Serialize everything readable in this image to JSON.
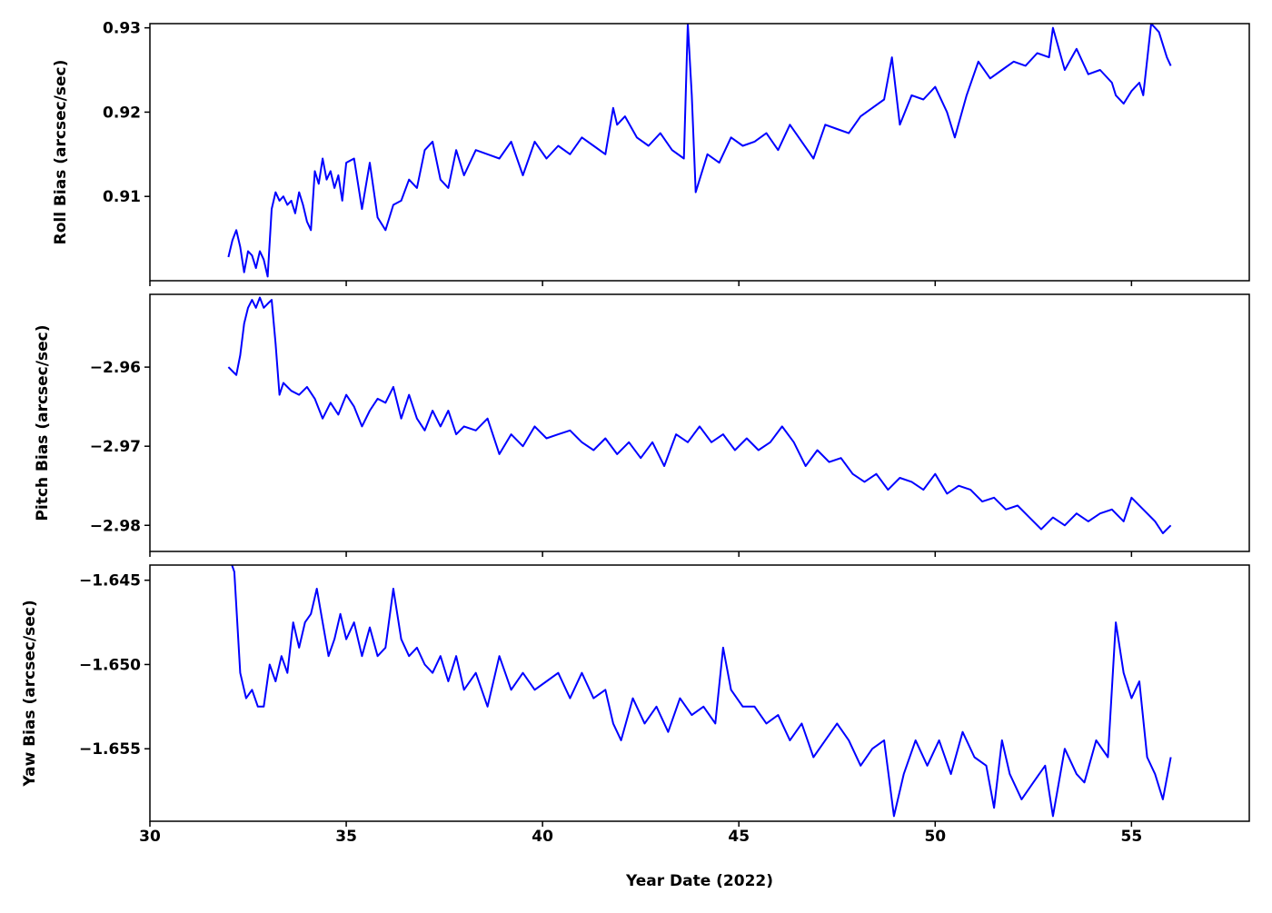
{
  "chart_data": {
    "type": "line",
    "xlabel": "Year Date (2022)",
    "xlim": [
      30,
      58
    ],
    "xticks": [
      "30",
      "35",
      "40",
      "45",
      "50",
      "55"
    ],
    "xtick_values": [
      30,
      35,
      40,
      45,
      50,
      55
    ],
    "line_color": "#0000ff",
    "grid": false,
    "panels": [
      {
        "ylabel": "Roll Bias (arcsec/sec)",
        "ylim": [
          0.9,
          0.9305
        ],
        "yticks": [
          "0.91",
          "0.92",
          "0.93"
        ],
        "ytick_values": [
          0.91,
          0.92,
          0.93
        ],
        "series": [
          {
            "x": [
              32.0,
              32.1,
              32.2,
              32.3,
              32.4,
              32.5,
              32.6,
              32.7,
              32.8,
              32.9,
              33.0,
              33.1,
              33.2,
              33.3,
              33.4,
              33.5,
              33.6,
              33.7,
              33.8,
              33.9,
              34.0,
              34.1,
              34.2,
              34.3,
              34.4,
              34.5,
              34.6,
              34.7,
              34.8,
              34.9,
              35.0,
              35.2,
              35.4,
              35.6,
              35.8,
              36.0,
              36.2,
              36.4,
              36.6,
              36.8,
              37.0,
              37.2,
              37.4,
              37.6,
              37.8,
              38.0,
              38.3,
              38.6,
              38.9,
              39.2,
              39.5,
              39.8,
              40.1,
              40.4,
              40.7,
              41.0,
              41.3,
              41.6,
              41.8,
              41.9,
              42.1,
              42.4,
              42.7,
              43.0,
              43.3,
              43.6,
              43.7,
              43.8,
              43.9,
              44.2,
              44.5,
              44.8,
              45.1,
              45.4,
              45.7,
              46.0,
              46.3,
              46.6,
              46.9,
              47.2,
              47.5,
              47.8,
              48.1,
              48.4,
              48.7,
              48.9,
              49.1,
              49.4,
              49.7,
              50.0,
              50.3,
              50.5,
              50.8,
              51.1,
              51.4,
              51.7,
              52.0,
              52.3,
              52.6,
              52.9,
              53.0,
              53.3,
              53.6,
              53.9,
              54.2,
              54.5,
              54.6,
              54.8,
              55.0,
              55.2,
              55.3,
              55.5,
              55.7,
              55.9,
              56.0
            ],
            "y": [
              0.9028,
              0.9048,
              0.906,
              0.904,
              0.901,
              0.9035,
              0.903,
              0.9015,
              0.9035,
              0.9025,
              0.9005,
              0.9085,
              0.9105,
              0.9095,
              0.91,
              0.909,
              0.9095,
              0.908,
              0.9105,
              0.909,
              0.907,
              0.906,
              0.913,
              0.9115,
              0.9145,
              0.912,
              0.913,
              0.911,
              0.9125,
              0.9095,
              0.914,
              0.9145,
              0.9085,
              0.914,
              0.9075,
              0.906,
              0.909,
              0.9095,
              0.912,
              0.911,
              0.9155,
              0.9165,
              0.912,
              0.911,
              0.9155,
              0.9125,
              0.9155,
              0.915,
              0.9145,
              0.9165,
              0.9125,
              0.9165,
              0.9145,
              0.916,
              0.915,
              0.917,
              0.916,
              0.915,
              0.9205,
              0.9185,
              0.9195,
              0.917,
              0.916,
              0.9175,
              0.9155,
              0.9145,
              0.9305,
              0.922,
              0.9105,
              0.915,
              0.914,
              0.917,
              0.916,
              0.9165,
              0.9175,
              0.9155,
              0.9185,
              0.9165,
              0.9145,
              0.9185,
              0.918,
              0.9175,
              0.9195,
              0.9205,
              0.9215,
              0.9265,
              0.9185,
              0.922,
              0.9215,
              0.923,
              0.92,
              0.917,
              0.922,
              0.926,
              0.924,
              0.925,
              0.926,
              0.9255,
              0.927,
              0.9265,
              0.93,
              0.925,
              0.9275,
              0.9245,
              0.925,
              0.9235,
              0.922,
              0.921,
              0.9225,
              0.9235,
              0.922,
              0.9305,
              0.9295,
              0.9265,
              0.9255
            ]
          }
        ]
      },
      {
        "ylabel": "Pitch Bias (arcsec/sec)",
        "ylim": [
          -2.9833,
          -2.9508
        ],
        "yticks": [
          "−2.96",
          "−2.97",
          "−2.98"
        ],
        "ytick_values": [
          -2.96,
          -2.97,
          -2.98
        ],
        "series": [
          {
            "x": [
              32.0,
              32.1,
              32.2,
              32.3,
              32.4,
              32.5,
              32.6,
              32.7,
              32.8,
              32.9,
              33.0,
              33.1,
              33.2,
              33.3,
              33.4,
              33.6,
              33.8,
              34.0,
              34.2,
              34.4,
              34.6,
              34.8,
              35.0,
              35.2,
              35.4,
              35.6,
              35.8,
              36.0,
              36.2,
              36.4,
              36.6,
              36.8,
              37.0,
              37.2,
              37.4,
              37.6,
              37.8,
              38.0,
              38.3,
              38.6,
              38.9,
              39.2,
              39.5,
              39.8,
              40.1,
              40.4,
              40.7,
              41.0,
              41.3,
              41.6,
              41.9,
              42.2,
              42.5,
              42.8,
              43.1,
              43.4,
              43.7,
              44.0,
              44.3,
              44.6,
              44.9,
              45.2,
              45.5,
              45.8,
              46.1,
              46.4,
              46.7,
              47.0,
              47.3,
              47.6,
              47.9,
              48.2,
              48.5,
              48.8,
              49.1,
              49.4,
              49.7,
              50.0,
              50.3,
              50.6,
              50.9,
              51.2,
              51.5,
              51.8,
              52.1,
              52.4,
              52.7,
              53.0,
              53.3,
              53.6,
              53.9,
              54.2,
              54.5,
              54.8,
              55.0,
              55.3,
              55.6,
              55.8,
              56.0
            ],
            "y": [
              -2.96,
              -2.9605,
              -2.961,
              -2.9585,
              -2.9545,
              -2.9525,
              -2.9515,
              -2.9525,
              -2.9512,
              -2.9525,
              -2.952,
              -2.9515,
              -2.957,
              -2.9635,
              -2.962,
              -2.963,
              -2.9635,
              -2.9625,
              -2.964,
              -2.9665,
              -2.9645,
              -2.966,
              -2.9635,
              -2.965,
              -2.9675,
              -2.9655,
              -2.964,
              -2.9645,
              -2.9625,
              -2.9665,
              -2.9635,
              -2.9665,
              -2.968,
              -2.9655,
              -2.9675,
              -2.9655,
              -2.9685,
              -2.9675,
              -2.968,
              -2.9665,
              -2.971,
              -2.9685,
              -2.97,
              -2.9675,
              -2.969,
              -2.9685,
              -2.968,
              -2.9695,
              -2.9705,
              -2.969,
              -2.971,
              -2.9695,
              -2.9715,
              -2.9695,
              -2.9725,
              -2.9685,
              -2.9695,
              -2.9675,
              -2.9695,
              -2.9685,
              -2.9705,
              -2.969,
              -2.9705,
              -2.9695,
              -2.9675,
              -2.9695,
              -2.9725,
              -2.9705,
              -2.972,
              -2.9715,
              -2.9735,
              -2.9745,
              -2.9735,
              -2.9755,
              -2.974,
              -2.9745,
              -2.9755,
              -2.9735,
              -2.976,
              -2.975,
              -2.9755,
              -2.977,
              -2.9765,
              -2.978,
              -2.9775,
              -2.979,
              -2.9805,
              -2.979,
              -2.98,
              -2.9785,
              -2.9795,
              -2.9785,
              -2.978,
              -2.9795,
              -2.9765,
              -2.978,
              -2.9795,
              -2.981,
              -2.98
            ]
          }
        ]
      },
      {
        "ylabel": "Yaw Bias (arcsec/sec)",
        "ylim": [
          -1.6593,
          -1.6441
        ],
        "yticks": [
          "−1.645",
          "−1.650",
          "−1.655"
        ],
        "ytick_values": [
          -1.645,
          -1.65,
          -1.655
        ],
        "series": [
          {
            "x": [
              32.0,
              32.15,
              32.3,
              32.45,
              32.6,
              32.75,
              32.9,
              33.05,
              33.2,
              33.35,
              33.5,
              33.65,
              33.8,
              33.95,
              34.1,
              34.25,
              34.4,
              34.55,
              34.7,
              34.85,
              35.0,
              35.2,
              35.4,
              35.6,
              35.8,
              36.0,
              36.2,
              36.4,
              36.6,
              36.8,
              37.0,
              37.2,
              37.4,
              37.6,
              37.8,
              38.0,
              38.3,
              38.6,
              38.9,
              39.2,
              39.5,
              39.8,
              40.1,
              40.4,
              40.7,
              41.0,
              41.3,
              41.6,
              41.8,
              42.0,
              42.3,
              42.6,
              42.9,
              43.2,
              43.5,
              43.8,
              44.1,
              44.4,
              44.6,
              44.8,
              45.1,
              45.4,
              45.7,
              46.0,
              46.3,
              46.6,
              46.9,
              47.2,
              47.5,
              47.8,
              48.1,
              48.4,
              48.7,
              48.95,
              49.2,
              49.5,
              49.8,
              50.1,
              50.4,
              50.7,
              51.0,
              51.3,
              51.5,
              51.7,
              51.9,
              52.2,
              52.5,
              52.8,
              53.0,
              53.3,
              53.6,
              53.8,
              54.1,
              54.4,
              54.6,
              54.8,
              55.0,
              55.2,
              55.4,
              55.6,
              55.8,
              56.0
            ],
            "y": [
              -1.6435,
              -1.6445,
              -1.6505,
              -1.652,
              -1.6515,
              -1.6525,
              -1.6525,
              -1.65,
              -1.651,
              -1.6495,
              -1.6505,
              -1.6475,
              -1.649,
              -1.6475,
              -1.647,
              -1.6455,
              -1.6475,
              -1.6495,
              -1.6485,
              -1.647,
              -1.6485,
              -1.6475,
              -1.6495,
              -1.6478,
              -1.6495,
              -1.649,
              -1.6455,
              -1.6485,
              -1.6495,
              -1.649,
              -1.65,
              -1.6505,
              -1.6495,
              -1.651,
              -1.6495,
              -1.6515,
              -1.6505,
              -1.6525,
              -1.6495,
              -1.6515,
              -1.6505,
              -1.6515,
              -1.651,
              -1.6505,
              -1.652,
              -1.6505,
              -1.652,
              -1.6515,
              -1.6535,
              -1.6545,
              -1.652,
              -1.6535,
              -1.6525,
              -1.654,
              -1.652,
              -1.653,
              -1.6525,
              -1.6535,
              -1.649,
              -1.6515,
              -1.6525,
              -1.6525,
              -1.6535,
              -1.653,
              -1.6545,
              -1.6535,
              -1.6555,
              -1.6545,
              -1.6535,
              -1.6545,
              -1.656,
              -1.655,
              -1.6545,
              -1.659,
              -1.6565,
              -1.6545,
              -1.656,
              -1.6545,
              -1.6565,
              -1.654,
              -1.6555,
              -1.656,
              -1.6585,
              -1.6545,
              -1.6565,
              -1.658,
              -1.657,
              -1.656,
              -1.659,
              -1.655,
              -1.6565,
              -1.657,
              -1.6545,
              -1.6555,
              -1.6475,
              -1.6505,
              -1.652,
              -1.651,
              -1.6555,
              -1.6565,
              -1.658,
              -1.6555
            ]
          }
        ]
      }
    ]
  }
}
